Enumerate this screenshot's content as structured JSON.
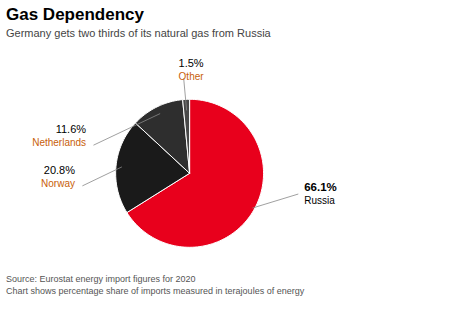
{
  "chart_data": {
    "type": "pie",
    "title": "Gas Dependency",
    "subtitle": "Germany gets two thirds of its natural gas from Russia",
    "annotations": [
      "Source: Eurostat energy import figures for 2020",
      "Chart shows percentage share of imports measured in terajoules of energy"
    ],
    "categories": [
      "Russia",
      "Norway",
      "Netherlands",
      "Other"
    ],
    "values": [
      66.1,
      20.8,
      11.6,
      1.5
    ],
    "value_labels": [
      "66.1%",
      "20.8%",
      "11.6%",
      "1.5%"
    ],
    "colors": [
      "#e8001c",
      "#1a1a1a",
      "#2e2e2e",
      "#484848"
    ],
    "data_labels": true
  }
}
